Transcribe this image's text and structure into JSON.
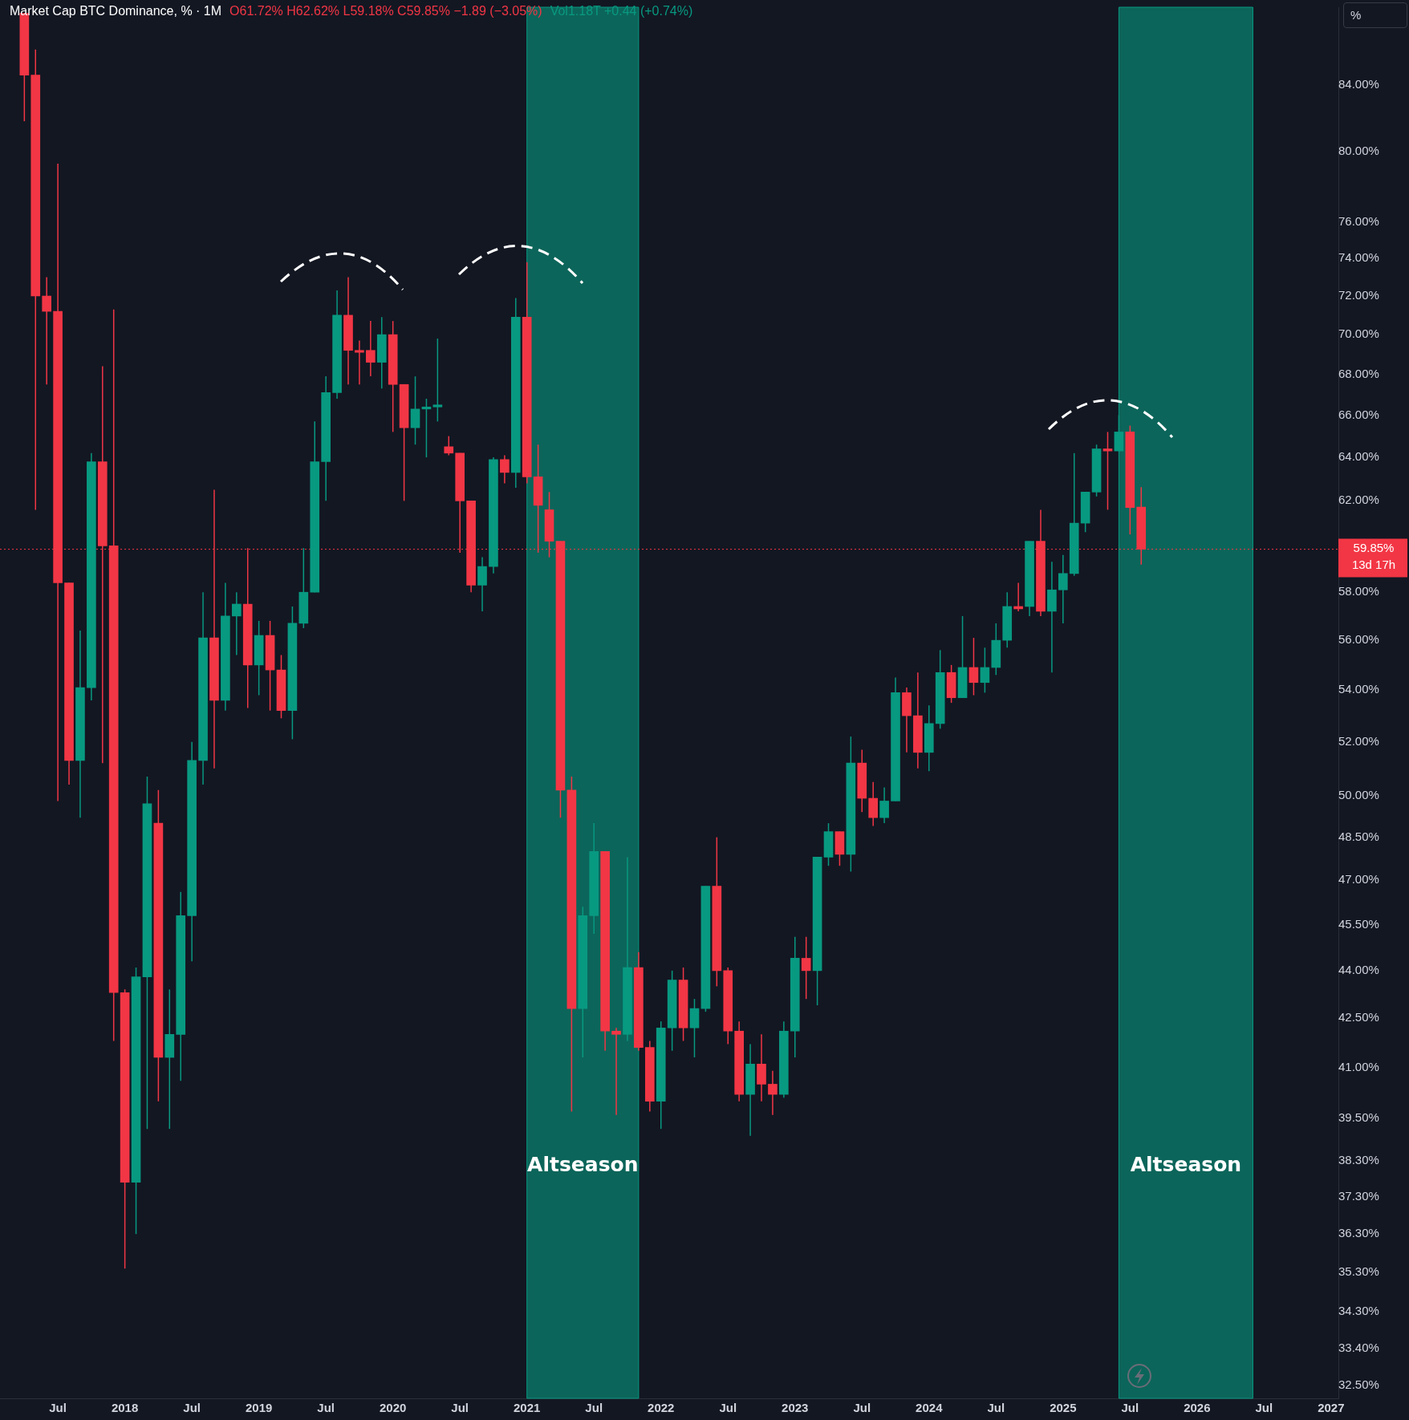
{
  "chart_data": {
    "type": "candlestick",
    "title": "Market Cap BTC Dominance, % · 1M",
    "subtitle": "O61.72% H62.62% L59.18% C59.85% −1.89 (−3.05%)",
    "annotations": [
      "Vol1.18T +0.44 (+0.74%)",
      "%",
      "Altseason",
      "Altseason"
    ],
    "x": [
      "2017-04",
      "2017-05",
      "2017-06",
      "2017-07",
      "2017-08",
      "2017-09",
      "2017-10",
      "2017-11",
      "2017-12",
      "2018-01",
      "2018-02",
      "2018-03",
      "2018-04",
      "2018-05",
      "2018-06",
      "2018-07",
      "2018-08",
      "2018-09",
      "2018-10",
      "2018-11",
      "2018-12",
      "2019-01",
      "2019-02",
      "2019-03",
      "2019-04",
      "2019-05",
      "2019-06",
      "2019-07",
      "2019-08",
      "2019-09",
      "2019-10",
      "2019-11",
      "2019-12",
      "2020-01",
      "2020-02",
      "2020-03",
      "2020-04",
      "2020-05",
      "2020-06",
      "2020-07",
      "2020-08",
      "2020-09",
      "2020-10",
      "2020-11",
      "2020-12",
      "2021-01",
      "2021-02",
      "2021-03",
      "2021-04",
      "2021-05",
      "2021-06",
      "2021-07",
      "2021-08",
      "2021-09",
      "2021-10",
      "2021-11",
      "2021-12",
      "2022-01",
      "2022-02",
      "2022-03",
      "2022-04",
      "2022-05",
      "2022-06",
      "2022-07",
      "2022-08",
      "2022-09",
      "2022-10",
      "2022-11",
      "2022-12",
      "2023-01",
      "2023-02",
      "2023-03",
      "2023-04",
      "2023-05",
      "2023-06",
      "2023-07",
      "2023-08",
      "2023-09",
      "2023-10",
      "2023-11",
      "2023-12",
      "2024-01",
      "2024-02",
      "2024-03",
      "2024-04",
      "2024-05",
      "2024-06",
      "2024-07",
      "2024-08",
      "2024-09",
      "2024-10",
      "2024-11",
      "2024-12",
      "2025-01",
      "2025-02",
      "2025-03",
      "2025-04",
      "2025-05",
      "2025-06",
      "2025-07",
      "2025-08"
    ],
    "ohlc": [
      [
        88.5,
        88.5,
        81.8,
        84.6
      ],
      [
        84.6,
        86.2,
        61.6,
        72.0
      ],
      [
        72.0,
        73.0,
        67.5,
        71.2
      ],
      [
        71.2,
        79.3,
        49.8,
        58.4
      ],
      [
        58.4,
        58.4,
        50.4,
        51.3
      ],
      [
        51.3,
        56.4,
        49.2,
        54.1
      ],
      [
        54.1,
        64.2,
        53.6,
        63.8
      ],
      [
        63.8,
        68.4,
        51.2,
        60.0
      ],
      [
        60.0,
        71.3,
        41.8,
        43.3
      ],
      [
        43.3,
        43.4,
        35.4,
        37.7
      ],
      [
        37.7,
        44.1,
        36.3,
        43.8
      ],
      [
        43.8,
        50.7,
        39.2,
        49.7
      ],
      [
        49.0,
        50.2,
        40.0,
        41.3
      ],
      [
        41.3,
        43.4,
        39.2,
        42.0
      ],
      [
        42.0,
        46.6,
        40.6,
        45.8
      ],
      [
        45.8,
        52.0,
        44.3,
        51.3
      ],
      [
        51.3,
        58.0,
        50.4,
        56.1
      ],
      [
        56.1,
        62.5,
        51.0,
        53.6
      ],
      [
        53.6,
        58.4,
        53.2,
        57.0
      ],
      [
        57.0,
        58.0,
        55.4,
        57.5
      ],
      [
        57.5,
        59.9,
        53.3,
        55.0
      ],
      [
        55.0,
        56.8,
        53.8,
        56.2
      ],
      [
        56.2,
        56.8,
        53.2,
        54.8
      ],
      [
        54.8,
        55.4,
        52.9,
        53.2
      ],
      [
        53.2,
        57.4,
        52.1,
        56.7
      ],
      [
        56.7,
        59.9,
        56.5,
        58.0
      ],
      [
        58.0,
        65.7,
        58.0,
        63.8
      ],
      [
        63.8,
        67.9,
        62.0,
        67.1
      ],
      [
        67.1,
        72.3,
        66.8,
        71.0
      ],
      [
        71.0,
        73.0,
        67.5,
        69.2
      ],
      [
        69.2,
        69.7,
        67.5,
        69.1
      ],
      [
        69.2,
        70.7,
        67.9,
        68.6
      ],
      [
        68.6,
        70.9,
        67.3,
        70.0
      ],
      [
        70.0,
        70.7,
        65.2,
        67.5
      ],
      [
        67.5,
        67.5,
        62.0,
        65.4
      ],
      [
        65.4,
        67.9,
        64.6,
        66.3
      ],
      [
        66.3,
        66.8,
        64.0,
        66.4
      ],
      [
        66.4,
        69.8,
        65.7,
        66.5
      ],
      [
        64.5,
        65.0,
        64.1,
        64.2
      ],
      [
        64.2,
        64.2,
        59.7,
        62.0
      ],
      [
        62.0,
        62.0,
        58.0,
        58.3
      ],
      [
        58.3,
        59.5,
        57.2,
        59.1
      ],
      [
        59.1,
        64.0,
        58.8,
        63.9
      ],
      [
        63.9,
        64.1,
        62.8,
        63.3
      ],
      [
        63.3,
        71.9,
        62.6,
        70.9
      ],
      [
        70.9,
        73.8,
        62.8,
        63.1
      ],
      [
        63.1,
        64.6,
        59.7,
        61.8
      ],
      [
        61.6,
        62.4,
        59.5,
        60.2
      ],
      [
        60.2,
        60.2,
        49.2,
        50.2
      ],
      [
        50.2,
        50.7,
        39.7,
        42.8
      ],
      [
        42.8,
        46.1,
        41.3,
        45.8
      ],
      [
        45.8,
        49.0,
        45.2,
        48.0
      ],
      [
        48.0,
        48.0,
        41.5,
        42.1
      ],
      [
        42.1,
        42.2,
        39.6,
        42.0
      ],
      [
        42.0,
        47.8,
        41.8,
        44.1
      ],
      [
        44.1,
        44.6,
        41.5,
        41.6
      ],
      [
        41.6,
        41.8,
        39.7,
        40.0
      ],
      [
        40.0,
        42.4,
        39.2,
        42.2
      ],
      [
        42.2,
        44.0,
        41.5,
        43.7
      ],
      [
        43.7,
        44.1,
        41.8,
        42.2
      ],
      [
        42.2,
        43.1,
        41.3,
        42.8
      ],
      [
        42.8,
        46.8,
        42.7,
        46.8
      ],
      [
        46.8,
        48.5,
        43.5,
        44.0
      ],
      [
        44.0,
        44.1,
        41.7,
        42.1
      ],
      [
        42.1,
        42.4,
        40.0,
        40.2
      ],
      [
        40.2,
        41.7,
        39.0,
        41.1
      ],
      [
        41.1,
        42.0,
        40.0,
        40.5
      ],
      [
        40.5,
        40.9,
        39.6,
        40.2
      ],
      [
        40.2,
        42.4,
        40.1,
        42.1
      ],
      [
        42.1,
        45.1,
        41.3,
        44.4
      ],
      [
        44.4,
        45.1,
        43.1,
        44.0
      ],
      [
        44.0,
        47.8,
        42.9,
        47.8
      ],
      [
        47.8,
        49.0,
        47.5,
        48.7
      ],
      [
        48.7,
        48.7,
        47.5,
        47.9
      ],
      [
        47.9,
        52.2,
        47.3,
        51.2
      ],
      [
        51.2,
        51.7,
        49.4,
        49.9
      ],
      [
        49.9,
        50.5,
        48.9,
        49.2
      ],
      [
        49.2,
        50.3,
        49.0,
        49.8
      ],
      [
        49.8,
        54.5,
        49.8,
        53.9
      ],
      [
        53.9,
        54.1,
        51.6,
        53.0
      ],
      [
        53.0,
        54.7,
        51.0,
        51.6
      ],
      [
        51.6,
        53.4,
        50.9,
        52.7
      ],
      [
        52.7,
        55.6,
        52.5,
        54.7
      ],
      [
        54.7,
        55.0,
        53.5,
        53.7
      ],
      [
        53.7,
        57.0,
        53.7,
        54.9
      ],
      [
        54.9,
        56.1,
        53.8,
        54.3
      ],
      [
        54.3,
        55.7,
        53.9,
        54.9
      ],
      [
        54.9,
        56.7,
        54.6,
        56.0
      ],
      [
        56.0,
        58.0,
        55.7,
        57.4
      ],
      [
        57.4,
        58.4,
        57.2,
        57.3
      ],
      [
        57.4,
        60.2,
        57.0,
        60.2
      ],
      [
        60.2,
        61.6,
        57.0,
        57.2
      ],
      [
        57.2,
        59.3,
        54.7,
        58.1
      ],
      [
        58.1,
        59.6,
        56.7,
        58.8
      ],
      [
        58.8,
        64.2,
        58.7,
        61.0
      ],
      [
        61.0,
        62.4,
        60.6,
        62.4
      ],
      [
        62.4,
        64.6,
        62.2,
        64.4
      ],
      [
        64.4,
        65.2,
        61.6,
        64.3
      ],
      [
        64.3,
        66.0,
        64.3,
        65.2
      ],
      [
        65.2,
        65.5,
        60.5,
        61.7
      ],
      [
        61.72,
        62.62,
        59.18,
        59.85
      ]
    ],
    "colors": [
      "#f23645",
      "#f23645",
      "#f23645",
      "#f23645",
      "#f23645",
      "#089981",
      "#089981",
      "#f23645",
      "#f23645",
      "#f23645",
      "#089981",
      "#089981",
      "#f23645",
      "#089981",
      "#089981",
      "#089981",
      "#089981",
      "#f23645",
      "#089981",
      "#089981",
      "#f23645",
      "#089981",
      "#f23645",
      "#f23645",
      "#089981",
      "#089981",
      "#089981",
      "#089981",
      "#089981",
      "#f23645",
      "#f23645",
      "#f23645",
      "#089981",
      "#f23645",
      "#f23645",
      "#089981",
      "#089981",
      "#089981",
      "#f23645",
      "#f23645",
      "#f23645",
      "#089981",
      "#089981",
      "#f23645",
      "#089981",
      "#f23645",
      "#f23645",
      "#f23645",
      "#f23645",
      "#f23645",
      "#089981",
      "#089981",
      "#f23645",
      "#f23645",
      "#089981",
      "#f23645",
      "#f23645",
      "#089981",
      "#089981",
      "#f23645",
      "#089981",
      "#089981",
      "#f23645",
      "#f23645",
      "#f23645",
      "#089981",
      "#f23645",
      "#f23645",
      "#089981",
      "#089981",
      "#f23645",
      "#089981",
      "#089981",
      "#f23645",
      "#089981",
      "#f23645",
      "#f23645",
      "#089981",
      "#089981",
      "#f23645",
      "#f23645",
      "#089981",
      "#089981",
      "#f23645",
      "#089981",
      "#f23645",
      "#089981",
      "#089981",
      "#089981",
      "#f23645",
      "#089981",
      "#f23645",
      "#089981",
      "#089981",
      "#089981",
      "#089981",
      "#089981",
      "#f23645",
      "#089981",
      "#f23645",
      "#f23645"
    ],
    "log": "y",
    "grid": false,
    "legend": false,
    "xlim": [
      "2017-01-26",
      "2027-01-21"
    ],
    "xticks": [
      {
        "value": "2017-07",
        "label": "Jul"
      },
      {
        "value": "2018-01",
        "label": "2018"
      },
      {
        "value": "2018-07",
        "label": "Jul"
      },
      {
        "value": "2019-01",
        "label": "2019"
      },
      {
        "value": "2019-07",
        "label": "Jul"
      },
      {
        "value": "2020-01",
        "label": "2020"
      },
      {
        "value": "2020-07",
        "label": "Jul"
      },
      {
        "value": "2021-01",
        "label": "2021"
      },
      {
        "value": "2021-07",
        "label": "Jul"
      },
      {
        "value": "2022-01",
        "label": "2022"
      },
      {
        "value": "2022-07",
        "label": "Jul"
      },
      {
        "value": "2023-01",
        "label": "2023"
      },
      {
        "value": "2023-07",
        "label": "Jul"
      },
      {
        "value": "2024-01",
        "label": "2024"
      },
      {
        "value": "2024-07",
        "label": "Jul"
      },
      {
        "value": "2025-01",
        "label": "2025"
      },
      {
        "value": "2025-07",
        "label": "Jul"
      },
      {
        "value": "2026-01",
        "label": "2026"
      },
      {
        "value": "2026-07",
        "label": "Jul"
      },
      {
        "value": "2027-01",
        "label": "2027"
      }
    ],
    "ylim": [
      32.2,
      88.9
    ],
    "yticks": [
      {
        "value": 84,
        "label": "84.00%"
      },
      {
        "value": 80,
        "label": "80.00%"
      },
      {
        "value": 76,
        "label": "76.00%"
      },
      {
        "value": 74,
        "label": "74.00%"
      },
      {
        "value": 72,
        "label": "72.00%"
      },
      {
        "value": 70,
        "label": "70.00%"
      },
      {
        "value": 68,
        "label": "68.00%"
      },
      {
        "value": 66,
        "label": "66.00%"
      },
      {
        "value": 64,
        "label": "64.00%"
      },
      {
        "value": 62,
        "label": "62.00%"
      },
      {
        "value": 58,
        "label": "58.00%"
      },
      {
        "value": 56,
        "label": "56.00%"
      },
      {
        "value": 54,
        "label": "54.00%"
      },
      {
        "value": 52,
        "label": "52.00%"
      },
      {
        "value": 50,
        "label": "50.00%"
      },
      {
        "value": 48.5,
        "label": "48.50%"
      },
      {
        "value": 47,
        "label": "47.00%"
      },
      {
        "value": 45.5,
        "label": "45.50%"
      },
      {
        "value": 44,
        "label": "44.00%"
      },
      {
        "value": 42.5,
        "label": "42.50%"
      },
      {
        "value": 41,
        "label": "41.00%"
      },
      {
        "value": 39.5,
        "label": "39.50%"
      },
      {
        "value": 38.3,
        "label": "38.30%"
      },
      {
        "value": 37.3,
        "label": "37.30%"
      },
      {
        "value": 36.3,
        "label": "36.30%"
      },
      {
        "value": 35.3,
        "label": "35.30%"
      },
      {
        "value": 34.3,
        "label": "34.30%"
      },
      {
        "value": 33.4,
        "label": "33.40%"
      },
      {
        "value": 32.5,
        "label": "32.50%"
      }
    ],
    "ref_lines": [
      {
        "axis": "y",
        "value": 59.85,
        "label": "59.85%\n13d 17h",
        "color": "#f23645",
        "line_style": "dotted"
      }
    ],
    "bands": [
      {
        "axis": "x",
        "from": "2021-01",
        "to": "2021-11",
        "color": "#089981"
      },
      {
        "axis": "x",
        "from": "2025-06",
        "to": "2026-06",
        "color": "#089981"
      }
    ]
  }
}
